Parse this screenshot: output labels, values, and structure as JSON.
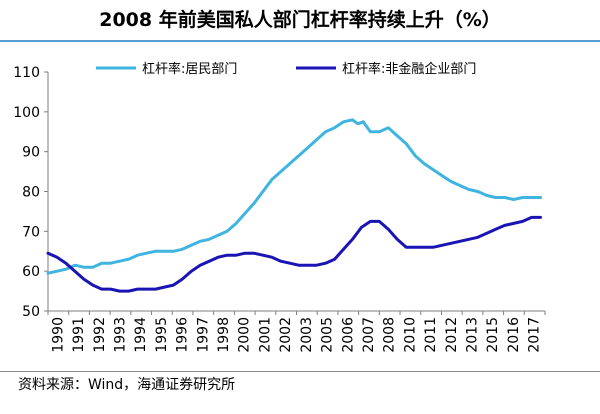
{
  "title": "2008 年前美国私人部门杠杆率持续上升（%）",
  "source": "资料来源：Wind，海通证券研究所",
  "chart_data": {
    "type": "line",
    "title": "2008 年前美国私人部门杠杆率持续上升（%）",
    "xlabel": "",
    "ylabel": "",
    "xlim": [
      1990,
      2017.75
    ],
    "ylim": [
      50,
      110
    ],
    "yticks": [
      50,
      60,
      70,
      80,
      90,
      100,
      110
    ],
    "xticks": [
      "1990",
      "1991",
      "1992",
      "1993",
      "1994",
      "1995",
      "1996",
      "1997",
      "1998",
      "2000",
      "2001",
      "2002",
      "2003",
      "2005",
      "2006",
      "2007",
      "2008",
      "2010",
      "2011",
      "2012",
      "2013",
      "2015",
      "2016",
      "2017"
    ],
    "grid": false,
    "legend": "top",
    "series": [
      {
        "name": "杠杆率:居民部门",
        "color": "#3fb4e0",
        "points": [
          [
            1990,
            59.5
          ],
          [
            1990.5,
            60
          ],
          [
            1991,
            60.5
          ],
          [
            1991.5,
            61.5
          ],
          [
            1992,
            61
          ],
          [
            1992.5,
            61
          ],
          [
            1993,
            62
          ],
          [
            1993.5,
            62
          ],
          [
            1994,
            62.5
          ],
          [
            1994.5,
            63
          ],
          [
            1995,
            64
          ],
          [
            1995.5,
            64.5
          ],
          [
            1996,
            65
          ],
          [
            1996.5,
            65
          ],
          [
            1997,
            65
          ],
          [
            1997.5,
            65.5
          ],
          [
            1998,
            66.5
          ],
          [
            1998.5,
            67.5
          ],
          [
            1999,
            68
          ],
          [
            1999.5,
            69
          ],
          [
            2000,
            70
          ],
          [
            2000.5,
            72
          ],
          [
            2001,
            74.5
          ],
          [
            2001.5,
            77
          ],
          [
            2002,
            80
          ],
          [
            2002.5,
            83
          ],
          [
            2003,
            85
          ],
          [
            2003.5,
            87
          ],
          [
            2004,
            89
          ],
          [
            2004.5,
            91
          ],
          [
            2005,
            93
          ],
          [
            2005.5,
            95
          ],
          [
            2006,
            96
          ],
          [
            2006.5,
            97.5
          ],
          [
            2007,
            98
          ],
          [
            2007.3,
            97
          ],
          [
            2007.6,
            97.5
          ],
          [
            2008,
            95
          ],
          [
            2008.5,
            95
          ],
          [
            2009,
            96
          ],
          [
            2009.5,
            94
          ],
          [
            2010,
            92
          ],
          [
            2010.5,
            89
          ],
          [
            2011,
            87
          ],
          [
            2011.5,
            85.5
          ],
          [
            2012,
            84
          ],
          [
            2012.5,
            82.5
          ],
          [
            2013,
            81.5
          ],
          [
            2013.5,
            80.5
          ],
          [
            2014,
            80
          ],
          [
            2014.5,
            79
          ],
          [
            2015,
            78.5
          ],
          [
            2015.5,
            78.5
          ],
          [
            2016,
            78
          ],
          [
            2016.5,
            78.5
          ],
          [
            2017,
            78.5
          ],
          [
            2017.5,
            78.5
          ]
        ]
      },
      {
        "name": "杠杆率:非金融企业部门",
        "color": "#1a14b4",
        "points": [
          [
            1990,
            64.5
          ],
          [
            1990.5,
            63.5
          ],
          [
            1991,
            62
          ],
          [
            1991.5,
            60
          ],
          [
            1992,
            58
          ],
          [
            1992.5,
            56.5
          ],
          [
            1993,
            55.5
          ],
          [
            1993.5,
            55.5
          ],
          [
            1994,
            55
          ],
          [
            1994.5,
            55
          ],
          [
            1995,
            55.5
          ],
          [
            1995.5,
            55.5
          ],
          [
            1996,
            55.5
          ],
          [
            1996.5,
            56
          ],
          [
            1997,
            56.5
          ],
          [
            1997.5,
            58
          ],
          [
            1998,
            60
          ],
          [
            1998.5,
            61.5
          ],
          [
            1999,
            62.5
          ],
          [
            1999.5,
            63.5
          ],
          [
            2000,
            64
          ],
          [
            2000.5,
            64
          ],
          [
            2001,
            64.5
          ],
          [
            2001.5,
            64.5
          ],
          [
            2002,
            64
          ],
          [
            2002.5,
            63.5
          ],
          [
            2003,
            62.5
          ],
          [
            2003.5,
            62
          ],
          [
            2004,
            61.5
          ],
          [
            2004.5,
            61.5
          ],
          [
            2005,
            61.5
          ],
          [
            2005.5,
            62
          ],
          [
            2006,
            63
          ],
          [
            2006.5,
            65.5
          ],
          [
            2007,
            68
          ],
          [
            2007.5,
            71
          ],
          [
            2008,
            72.5
          ],
          [
            2008.5,
            72.5
          ],
          [
            2009,
            70.5
          ],
          [
            2009.5,
            68
          ],
          [
            2010,
            66
          ],
          [
            2010.5,
            66
          ],
          [
            2011,
            66
          ],
          [
            2011.5,
            66
          ],
          [
            2012,
            66.5
          ],
          [
            2012.5,
            67
          ],
          [
            2013,
            67.5
          ],
          [
            2013.5,
            68
          ],
          [
            2014,
            68.5
          ],
          [
            2014.5,
            69.5
          ],
          [
            2015,
            70.5
          ],
          [
            2015.5,
            71.5
          ],
          [
            2016,
            72
          ],
          [
            2016.5,
            72.5
          ],
          [
            2017,
            73.5
          ],
          [
            2017.5,
            73.5
          ]
        ]
      }
    ]
  }
}
